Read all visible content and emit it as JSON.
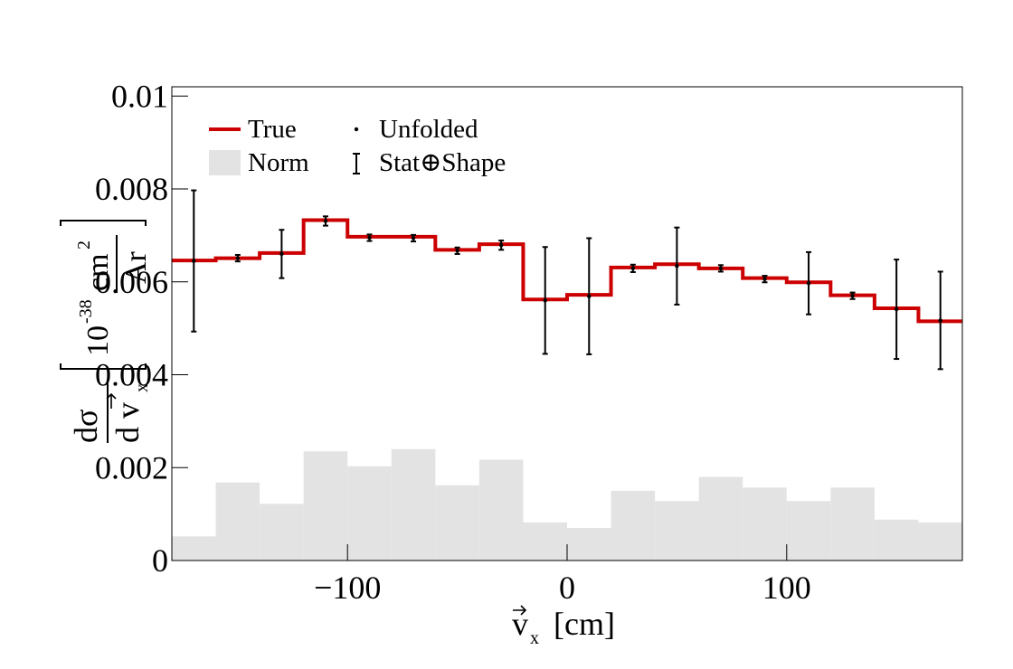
{
  "chart_data": {
    "type": "histogram",
    "x_edges": [
      -180,
      -160,
      -140,
      -120,
      -100,
      -80,
      -60,
      -40,
      -20,
      0,
      20,
      40,
      60,
      80,
      100,
      120,
      140,
      160,
      180
    ],
    "xlim": [
      -180,
      180
    ],
    "ylim": [
      0,
      0.0102
    ],
    "x_ticks": [
      -100,
      0,
      100
    ],
    "x_tick_labels": [
      "−100",
      "0",
      "100"
    ],
    "y_ticks": [
      0,
      0.002,
      0.004,
      0.006,
      0.008,
      0.01
    ],
    "y_tick_labels": [
      "0",
      "0.002",
      "0.004",
      "0.006",
      "0.008",
      "0.01"
    ],
    "xlabel": "v⃗x [cm]",
    "ylabel": "dσ/dv⃗x [10^-38 cm²/Ar]",
    "grid": false,
    "legend_position": "top-left",
    "series": [
      {
        "name": "True",
        "style": "step-line",
        "color": "#cc0000",
        "values": [
          0.00646,
          0.00651,
          0.00662,
          0.00733,
          0.00697,
          0.00697,
          0.00669,
          0.00681,
          0.00562,
          0.00572,
          0.00631,
          0.00638,
          0.00629,
          0.00608,
          0.00599,
          0.00571,
          0.00543,
          0.00515
        ]
      },
      {
        "name": "Unfolded",
        "style": "points-with-error-bars",
        "color": "#000000",
        "error_label": "Stat⊕Shape",
        "values": [
          0.00645,
          0.00651,
          0.0066,
          0.00731,
          0.00695,
          0.00694,
          0.00667,
          0.00679,
          0.0056,
          0.00569,
          0.00629,
          0.00634,
          0.00629,
          0.00606,
          0.00597,
          0.0057,
          0.00541,
          0.00517
        ],
        "errors": [
          0.00152,
          7e-05,
          0.00052,
          0.0001,
          7e-05,
          7e-05,
          7e-05,
          0.0001,
          0.00115,
          0.00125,
          8e-05,
          0.00083,
          7e-05,
          7e-05,
          0.00067,
          7e-05,
          0.00107,
          0.00105
        ]
      },
      {
        "name": "Norm",
        "style": "filled-histogram",
        "color": "#e3e3e3",
        "values": [
          0.00052,
          0.00168,
          0.00122,
          0.00235,
          0.00203,
          0.0024,
          0.00162,
          0.00217,
          0.00082,
          0.0007,
          0.0015,
          0.00128,
          0.0018,
          0.00157,
          0.00128,
          0.00157,
          0.00088,
          0.00082
        ]
      }
    ],
    "legend": {
      "true_label": "True",
      "unfolded_label": "Unfolded",
      "norm_label": "Norm",
      "error_label": "Stat⊕Shape"
    }
  }
}
